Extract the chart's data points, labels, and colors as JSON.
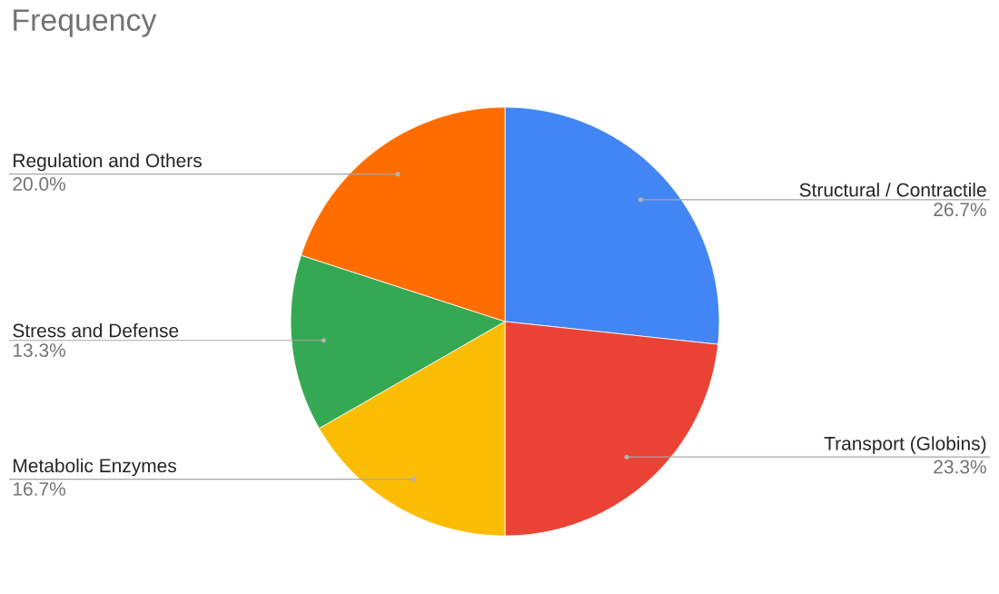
{
  "chart_data": {
    "type": "pie",
    "title": "Frequency",
    "categories": [
      "Structural / Contractile",
      "Transport (Globins)",
      "Metabolic Enzymes",
      "Stress and Defense",
      "Regulation and Others"
    ],
    "values": [
      26.7,
      23.3,
      16.7,
      13.3,
      20.0
    ],
    "value_labels": [
      "26.7%",
      "23.3%",
      "16.7%",
      "13.3%",
      "20.0%"
    ],
    "colors": [
      "#4285f4",
      "#ea4335",
      "#fbbc04",
      "#34a853",
      "#ff6d01"
    ]
  }
}
